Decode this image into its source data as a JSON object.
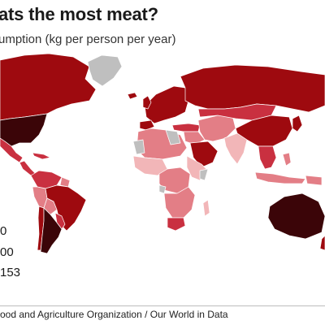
{
  "title": "ats the most meat?",
  "subtitle": "umption (kg per person per year)",
  "legend": {
    "labels": [
      "0",
      "00",
      "153"
    ]
  },
  "colors": {
    "ocean": "#ffffff",
    "no_data": "#bfbfbf",
    "lightest": "#f2b6b8",
    "light": "#e37e86",
    "medium": "#c93040",
    "dark": "#9e0a0f",
    "darkest": "#3b0508",
    "border": "#ffffff"
  },
  "source": "ood and Agriculture Organization / Our World in Data"
}
